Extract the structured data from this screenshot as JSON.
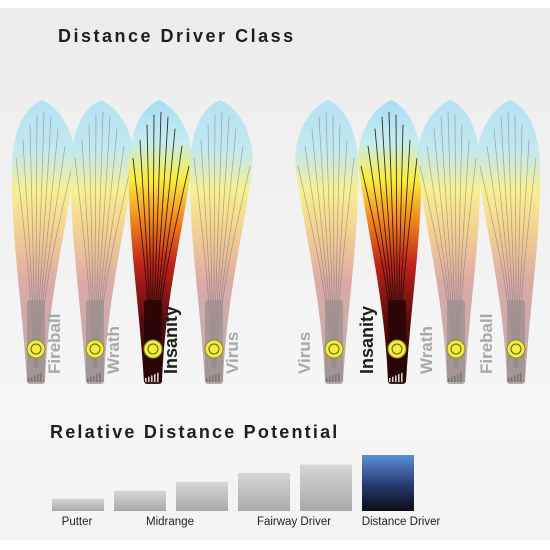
{
  "titles": {
    "driver_class": "Distance Driver Class",
    "relative_distance": "Relative Distance Potential"
  },
  "discs": [
    {
      "name": "Fireball",
      "highlight": false
    },
    {
      "name": "Wrath",
      "highlight": false
    },
    {
      "name": "Insanity",
      "highlight": true
    },
    {
      "name": "Virus",
      "highlight": false
    },
    {
      "name": "Virus",
      "highlight": false
    },
    {
      "name": "Insanity",
      "highlight": true
    },
    {
      "name": "Wrath",
      "highlight": false
    },
    {
      "name": "Fireball",
      "highlight": false
    }
  ],
  "bar_labels": {
    "putter": "Putter",
    "midrange": "Midrange",
    "fairway": "Fairway Driver",
    "distance": "Distance Driver"
  },
  "relative_levels": [
    {
      "category": "Putter",
      "level": 0.22
    },
    {
      "category": "",
      "level": 0.36
    },
    {
      "category": "Midrange",
      "level": 0.52
    },
    {
      "category": "",
      "level": 0.68
    },
    {
      "category": "Fairway Driver",
      "level": 0.83
    },
    {
      "category": "Distance Driver",
      "level": 1.0
    }
  ],
  "colors": {
    "highlight_bar_top": "#5a8fd6",
    "highlight_bar_bottom": "#0c0c16",
    "plain_bar": "#b8b8b8"
  }
}
